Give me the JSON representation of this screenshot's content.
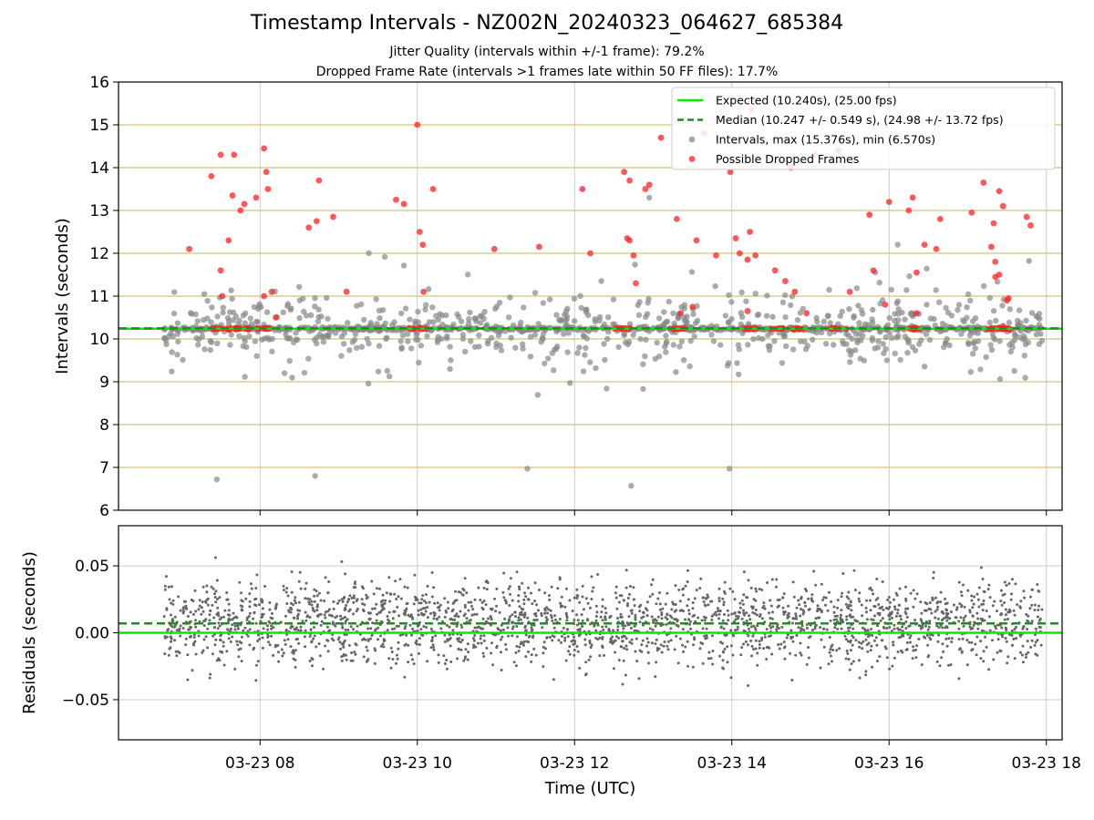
{
  "title": "Timestamp Intervals - NZ002N_20240323_064627_685384",
  "subtitle_jitter": "Jitter Quality (intervals within +/-1 frame): 79.2%",
  "subtitle_dropped": "Dropped Frame Rate (intervals >1 frames late within 50 FF files): 17.7%",
  "colors": {
    "expected": "#00ee00",
    "median": "#228b22",
    "intervals": "#888888",
    "dropped": "#ff2020",
    "grid_h": "#d4c27a",
    "grid_v": "#cccccc",
    "residuals": "#666666"
  },
  "chart_data": [
    {
      "type": "scatter",
      "ylabel": "Intervals (seconds)",
      "ylim": [
        6,
        16
      ],
      "yticks": [
        6,
        7,
        8,
        9,
        10,
        11,
        12,
        13,
        14,
        15,
        16
      ],
      "xlim_hours": [
        6.2,
        18.2
      ],
      "grid": true,
      "legend_position": "top-right",
      "expected_value": 10.24,
      "median_value": 10.247,
      "legend": [
        {
          "key": "expected",
          "label": "Expected (10.240s), (25.00 fps)"
        },
        {
          "key": "median",
          "label": "Median (10.247 +/- 0.549 s), (24.98 +/- 13.72 fps)"
        },
        {
          "key": "intervals",
          "label": "Intervals, max (15.376s), min (6.570s)"
        },
        {
          "key": "dropped",
          "label": "Possible Dropped Frames"
        }
      ],
      "intervals_max": 15.376,
      "intervals_min": 6.57,
      "time_start_hours": 6.78,
      "time_end_hours": 17.95,
      "dropped_frames": [
        [
          7.1,
          12.1
        ],
        [
          7.38,
          13.8
        ],
        [
          7.5,
          14.3
        ],
        [
          7.5,
          11.6
        ],
        [
          7.52,
          11.0
        ],
        [
          7.6,
          12.3
        ],
        [
          7.65,
          13.35
        ],
        [
          7.67,
          14.3
        ],
        [
          7.75,
          13.0
        ],
        [
          7.8,
          13.15
        ],
        [
          7.95,
          13.3
        ],
        [
          8.05,
          14.45
        ],
        [
          8.08,
          13.9
        ],
        [
          8.1,
          13.5
        ],
        [
          8.05,
          11.0
        ],
        [
          8.15,
          11.1
        ],
        [
          8.2,
          10.5
        ],
        [
          8.62,
          12.6
        ],
        [
          8.75,
          13.7
        ],
        [
          8.72,
          12.75
        ],
        [
          8.93,
          12.85
        ],
        [
          9.1,
          11.1
        ],
        [
          9.73,
          13.25
        ],
        [
          9.83,
          13.15
        ],
        [
          10.0,
          15.0
        ],
        [
          10.03,
          12.5
        ],
        [
          10.07,
          12.2
        ],
        [
          10.2,
          13.5
        ],
        [
          10.08,
          11.1
        ],
        [
          10.98,
          12.1
        ],
        [
          11.55,
          12.15
        ],
        [
          12.1,
          13.5
        ],
        [
          12.2,
          12.0
        ],
        [
          12.63,
          13.9
        ],
        [
          12.67,
          12.35
        ],
        [
          12.7,
          12.3
        ],
        [
          12.7,
          13.7
        ],
        [
          12.75,
          11.95
        ],
        [
          12.78,
          11.3
        ],
        [
          12.9,
          13.5
        ],
        [
          12.95,
          13.6
        ],
        [
          13.1,
          14.7
        ],
        [
          13.3,
          12.8
        ],
        [
          13.35,
          10.6
        ],
        [
          13.5,
          10.75
        ],
        [
          13.55,
          12.3
        ],
        [
          13.65,
          14.8
        ],
        [
          13.8,
          11.95
        ],
        [
          13.98,
          13.9
        ],
        [
          14.05,
          12.35
        ],
        [
          14.1,
          12.0
        ],
        [
          14.2,
          11.85
        ],
        [
          14.23,
          12.5
        ],
        [
          14.25,
          15.35
        ],
        [
          14.2,
          10.65
        ],
        [
          14.3,
          11.95
        ],
        [
          14.55,
          11.6
        ],
        [
          14.68,
          11.35
        ],
        [
          14.8,
          11.1
        ],
        [
          14.75,
          14.0
        ],
        [
          14.95,
          10.6
        ],
        [
          15.05,
          14.3
        ],
        [
          15.35,
          14.4
        ],
        [
          15.5,
          11.1
        ],
        [
          15.75,
          12.9
        ],
        [
          15.8,
          11.6
        ],
        [
          15.95,
          10.8
        ],
        [
          16.0,
          13.2
        ],
        [
          16.25,
          13.0
        ],
        [
          16.3,
          13.3
        ],
        [
          16.35,
          11.55
        ],
        [
          16.35,
          10.6
        ],
        [
          16.45,
          12.2
        ],
        [
          16.6,
          12.1
        ],
        [
          16.65,
          12.8
        ],
        [
          17.05,
          12.95
        ],
        [
          17.2,
          13.65
        ],
        [
          17.3,
          12.15
        ],
        [
          17.33,
          12.7
        ],
        [
          17.35,
          11.8
        ],
        [
          17.4,
          13.45
        ],
        [
          17.35,
          11.45
        ],
        [
          17.4,
          11.5
        ],
        [
          17.45,
          13.1
        ],
        [
          17.5,
          10.9
        ],
        [
          17.52,
          10.95
        ],
        [
          17.45,
          10.3
        ],
        [
          17.75,
          12.85
        ],
        [
          17.8,
          12.65
        ]
      ]
    },
    {
      "type": "scatter",
      "ylabel": "Residuals (seconds)",
      "xlabel": "Time (UTC)",
      "ylim": [
        -0.08,
        0.08
      ],
      "yticks": [
        0.05,
        0.0,
        -0.05
      ],
      "ytick_labels": [
        "0.05",
        "0.00",
        "−0.05"
      ],
      "xticks_hours": [
        8,
        10,
        12,
        14,
        16,
        18
      ],
      "xtick_labels": [
        "03-23 08",
        "03-23 10",
        "03-23 12",
        "03-23 14",
        "03-23 16",
        "03-23 18"
      ],
      "expected_value": 0.0,
      "median_value": 0.007,
      "grid": true
    }
  ]
}
